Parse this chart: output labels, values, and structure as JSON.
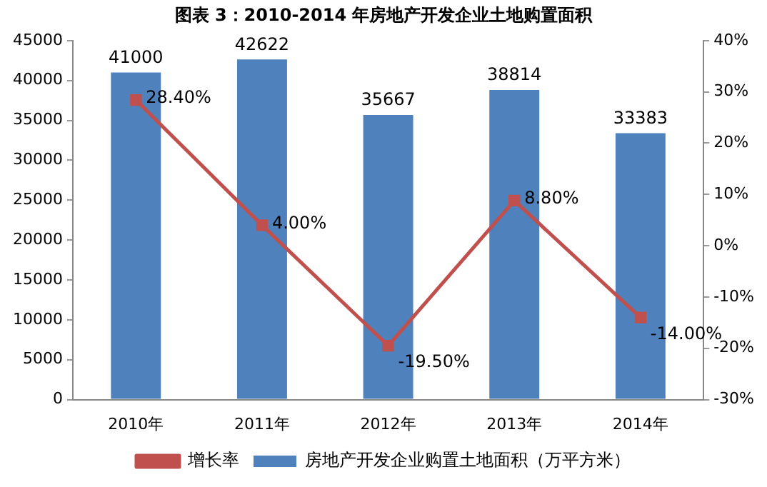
{
  "chart_data": {
    "type": "bar",
    "title": "图表 3：2010-2014 年房地产开发企业土地购置面积",
    "categories": [
      "2010年",
      "2011年",
      "2012年",
      "2013年",
      "2014年"
    ],
    "series": [
      {
        "name": "房地产开发企业购置土地面积（万平方米）",
        "color": "#4f81bd",
        "values": [
          41000,
          42622,
          35667,
          38814,
          33383
        ],
        "value_labels": [
          "41000",
          "42622",
          "35667",
          "38814",
          "33383"
        ]
      },
      {
        "name": "增长率",
        "type": "line",
        "axis": "y2",
        "color": "#c0504d",
        "marker": "square",
        "values": [
          28.4,
          4.0,
          -19.5,
          8.8,
          -14.0
        ],
        "value_labels": [
          "28.40%",
          "4.00%",
          "-19.50%",
          "8.80%",
          "-14.00%"
        ]
      }
    ],
    "ylim": [
      0,
      45000
    ],
    "yticks": [
      0,
      5000,
      10000,
      15000,
      20000,
      25000,
      30000,
      35000,
      40000,
      45000
    ],
    "y2lim": [
      -30,
      40
    ],
    "y2ticks": [
      {
        "value": -30,
        "label": "-30%"
      },
      {
        "value": -20,
        "label": "-20%"
      },
      {
        "value": -10,
        "label": "-10%"
      },
      {
        "value": 0,
        "label": "0%"
      },
      {
        "value": 10,
        "label": "10%"
      },
      {
        "value": 20,
        "label": "20%"
      },
      {
        "value": 30,
        "label": "30%"
      },
      {
        "value": 40,
        "label": "40%"
      }
    ],
    "grid": false,
    "legend": "bottom"
  }
}
